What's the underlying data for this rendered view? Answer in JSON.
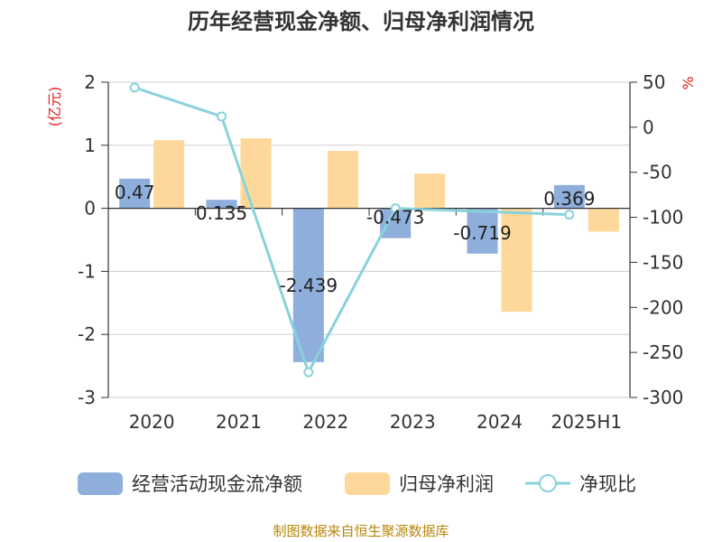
{
  "chart_data": {
    "type": "bar",
    "title": "历年经营现金净额、归母净利润情况",
    "categories": [
      "2020",
      "2021",
      "2022",
      "2023",
      "2024",
      "2025H1"
    ],
    "left_axis": {
      "unit": "(亿元)",
      "range": [
        -3,
        2
      ],
      "ticks": [
        "2",
        "1",
        "0",
        "-1",
        "-2",
        "-3"
      ]
    },
    "right_axis": {
      "unit": "%",
      "range": [
        -300,
        50
      ],
      "ticks": [
        "50",
        "0",
        "-50",
        "-100",
        "-150",
        "-200",
        "-250",
        "-300"
      ]
    },
    "series": [
      {
        "name": "经营活动现金流净额",
        "type": "bar",
        "axis": "left",
        "color": "#8eaedc",
        "values": [
          0.47,
          0.135,
          -2.439,
          -0.473,
          -0.719,
          0.369
        ],
        "labels": [
          "0.47",
          "0.135",
          "-2.439",
          "-0.473",
          "-0.719",
          "0.369"
        ]
      },
      {
        "name": "归母净利润",
        "type": "bar",
        "axis": "left",
        "color": "#fdd89a",
        "values": [
          1.08,
          1.11,
          0.91,
          0.55,
          -1.64,
          -0.37
        ]
      },
      {
        "name": "净现比",
        "type": "line",
        "axis": "right",
        "color": "#88d2dc",
        "values": [
          44,
          12,
          -272,
          -90,
          null,
          -97
        ]
      }
    ],
    "legend_position": "bottom",
    "grid": true,
    "source": "制图数据来自恒生聚源数据库"
  }
}
